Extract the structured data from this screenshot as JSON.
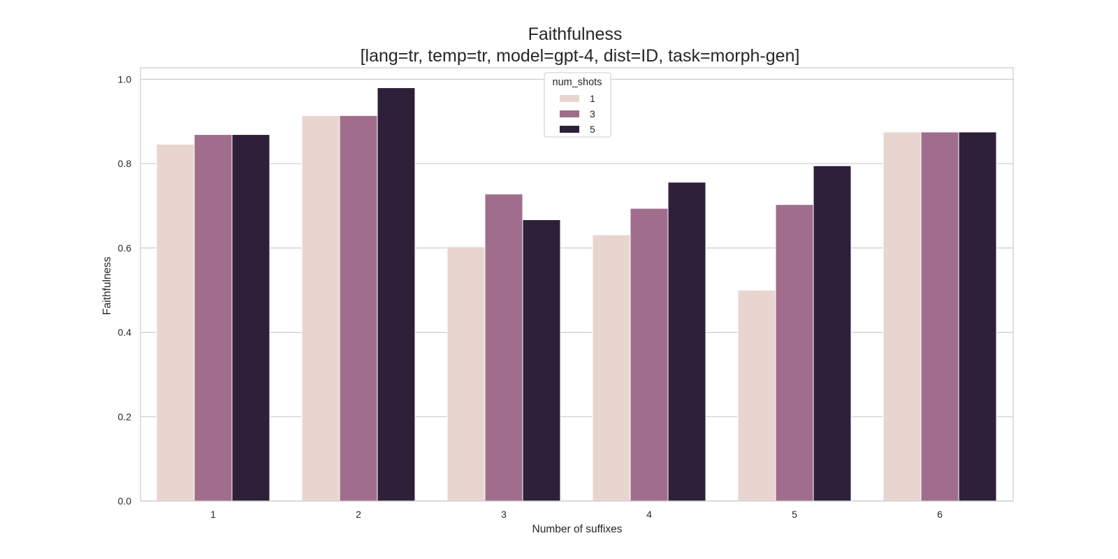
{
  "chart_data": {
    "type": "bar",
    "title": "Faithfulness",
    "subtitle": "[lang=tr, temp=tr, model=gpt-4, dist=ID, task=morph-gen]",
    "xlabel": "Number of suffixes",
    "ylabel": "Faithfulness",
    "categories": [
      "1",
      "2",
      "3",
      "4",
      "5",
      "6"
    ],
    "ylim": [
      0,
      1.03
    ],
    "yticks": [
      0.0,
      0.2,
      0.4,
      0.6,
      0.8,
      1.0
    ],
    "ytick_labels": [
      "0.0",
      "0.2",
      "0.4",
      "0.6",
      "0.8",
      "1.0"
    ],
    "grid": "horizontal",
    "legend": {
      "title": "num_shots",
      "placement": "top-center"
    },
    "series": [
      {
        "name": "1",
        "color": "#e8d5cf",
        "values": [
          0.846,
          0.914,
          0.603,
          0.631,
          0.5,
          0.875
        ]
      },
      {
        "name": "3",
        "color": "#a06e8c",
        "values": [
          0.869,
          0.914,
          0.728,
          0.694,
          0.703,
          0.875
        ]
      },
      {
        "name": "5",
        "color": "#2e2039",
        "values": [
          0.869,
          0.98,
          0.667,
          0.756,
          0.795,
          0.875
        ]
      }
    ]
  }
}
